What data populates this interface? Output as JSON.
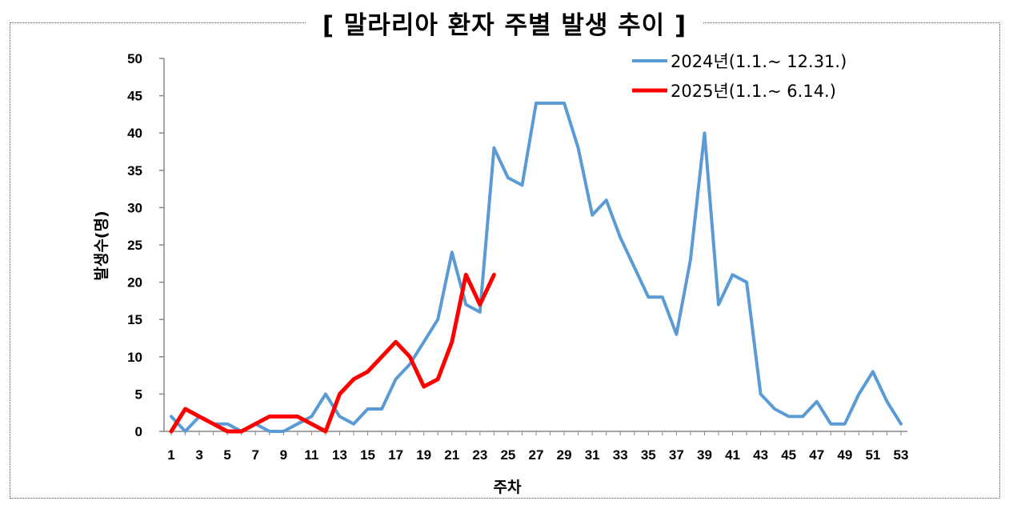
{
  "page": {
    "title": "[ 말라리아 환자 주별 발생 추이 ]"
  },
  "chart_data": {
    "type": "line",
    "title": "[ 말라리아 환자 주별 발생 추이 ]",
    "xlabel": "주차",
    "ylabel": "발생수(명)",
    "ylim": [
      0,
      50
    ],
    "yticks": [
      0,
      5,
      10,
      15,
      20,
      25,
      30,
      35,
      40,
      45,
      50
    ],
    "xlim": [
      1,
      53
    ],
    "xticks": [
      1,
      3,
      5,
      7,
      9,
      11,
      13,
      15,
      17,
      19,
      21,
      23,
      25,
      27,
      29,
      31,
      33,
      35,
      37,
      39,
      41,
      43,
      45,
      47,
      49,
      51,
      53
    ],
    "grid": false,
    "legend_position": "top-right",
    "series": [
      {
        "name": "2024년(1.1.~ 12.31.)",
        "color": "#5b9bd5",
        "x": [
          1,
          2,
          3,
          4,
          5,
          6,
          7,
          8,
          9,
          10,
          11,
          12,
          13,
          14,
          15,
          16,
          17,
          18,
          19,
          20,
          21,
          22,
          23,
          24,
          25,
          26,
          27,
          28,
          29,
          30,
          31,
          32,
          33,
          34,
          35,
          36,
          37,
          38,
          39,
          40,
          41,
          42,
          43,
          44,
          45,
          46,
          47,
          48,
          49,
          50,
          51,
          52,
          53
        ],
        "values": [
          2,
          0,
          2,
          1,
          1,
          0,
          1,
          0,
          0,
          1,
          2,
          5,
          2,
          1,
          3,
          3,
          7,
          9,
          12,
          15,
          24,
          17,
          16,
          38,
          34,
          33,
          44,
          44,
          44,
          38,
          29,
          31,
          26,
          22,
          18,
          18,
          13,
          23,
          40,
          17,
          21,
          20,
          5,
          3,
          2,
          2,
          4,
          1,
          1,
          5,
          8,
          4,
          1
        ]
      },
      {
        "name": "2025년(1.1.~ 6.14.)",
        "color": "#ff0000",
        "x": [
          1,
          2,
          3,
          4,
          5,
          6,
          7,
          8,
          9,
          10,
          11,
          12,
          13,
          14,
          15,
          16,
          17,
          18,
          19,
          20,
          21,
          22,
          23,
          24
        ],
        "values": [
          0,
          3,
          2,
          1,
          0,
          0,
          1,
          2,
          2,
          2,
          1,
          0,
          5,
          7,
          8,
          10,
          12,
          10,
          6,
          7,
          12,
          21,
          17,
          21
        ]
      }
    ]
  }
}
